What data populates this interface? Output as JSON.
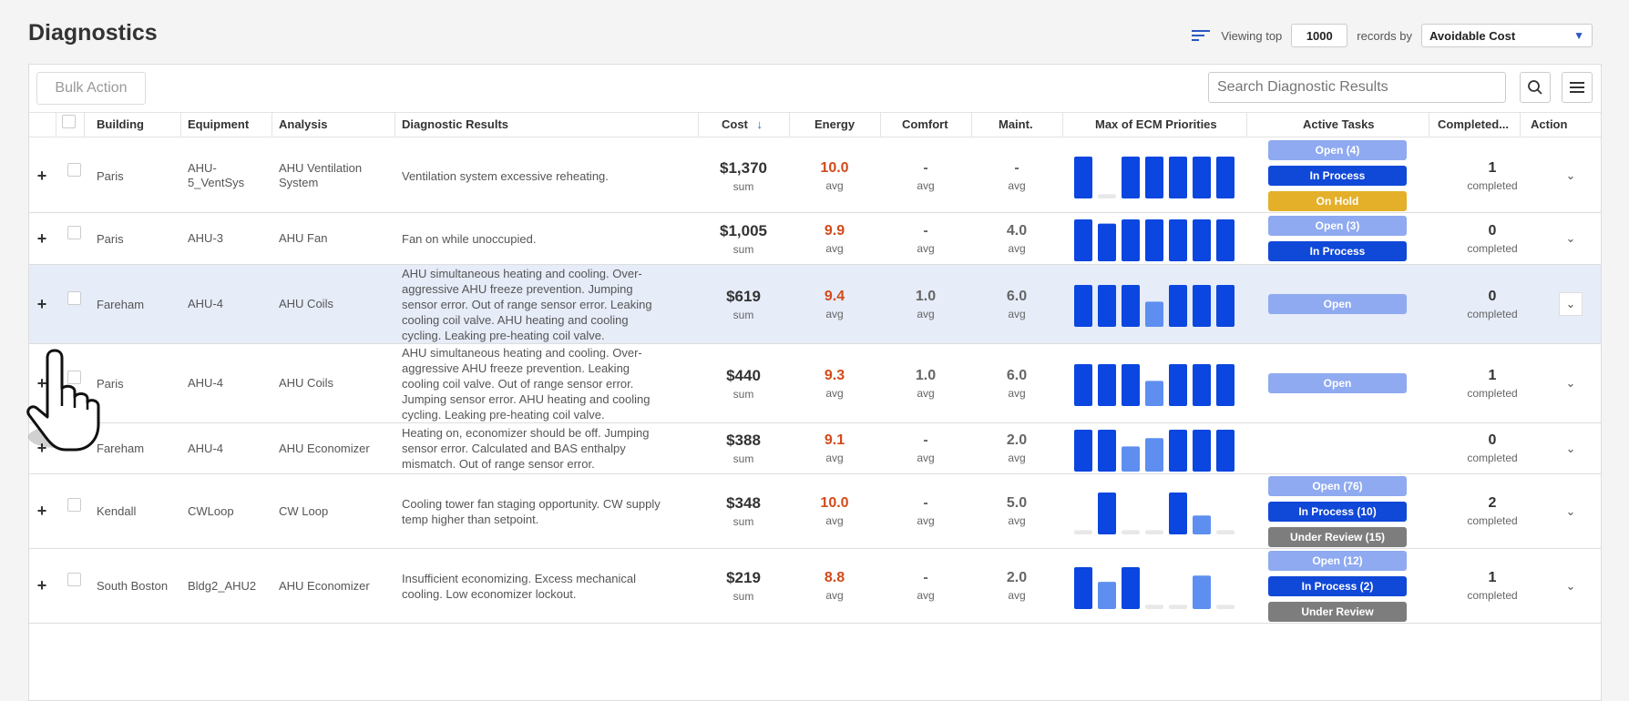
{
  "page_title": "Diagnostics",
  "viewing": {
    "prefix": "Viewing top",
    "count": "1000",
    "suffix": "records by",
    "sort_by": "Avoidable Cost"
  },
  "toolbar": {
    "bulk_action": "Bulk Action",
    "search_placeholder": "Search Diagnostic Results"
  },
  "columns": {
    "building": "Building",
    "equipment": "Equipment",
    "analysis": "Analysis",
    "results": "Diagnostic Results",
    "cost": "Cost",
    "energy": "Energy",
    "comfort": "Comfort",
    "maint": "Maint.",
    "ecm": "Max of ECM Priorities",
    "tasks": "Active Tasks",
    "completed": "Completed...",
    "action": "Action"
  },
  "colors": {
    "accent": "#1048d8",
    "energy": "#d24a1a",
    "open": "#8faaf0",
    "hold": "#e4b02a",
    "review": "#7d7d7d",
    "selected_row": "#e6ecf8"
  },
  "rows": [
    {
      "building": "Paris",
      "equipment": "AHU-5_VentSys",
      "analysis": "AHU Ventilation System",
      "results": "Ventilation system excessive reheating.",
      "cost": "$1,370",
      "cost_sub": "sum",
      "energy": "10.0",
      "comfort": "-",
      "maint": "-",
      "sub": "avg",
      "ecm": [
        10,
        1,
        10,
        10,
        10,
        10,
        10
      ],
      "tasks": [
        {
          "label": "Open (4)",
          "type": "open"
        },
        {
          "label": "In Process",
          "type": "proc"
        },
        {
          "label": "On Hold",
          "type": "hold"
        }
      ],
      "completed": "1",
      "completed_sub": "completed"
    },
    {
      "building": "Paris",
      "equipment": "AHU-3",
      "analysis": "AHU Fan",
      "results": "Fan on while unoccupied.",
      "cost": "$1,005",
      "cost_sub": "sum",
      "energy": "9.9",
      "comfort": "-",
      "maint": "4.0",
      "sub": "avg",
      "ecm": [
        10,
        9,
        10,
        10,
        10,
        10,
        10
      ],
      "tasks": [
        {
          "label": "Open (3)",
          "type": "open"
        },
        {
          "label": "In Process",
          "type": "proc"
        }
      ],
      "completed": "0",
      "completed_sub": "completed"
    },
    {
      "building": "Fareham",
      "equipment": "AHU-4",
      "analysis": "AHU Coils",
      "results": "AHU simultaneous heating and cooling. Over-aggressive AHU freeze prevention. Jumping sensor error. Out of range sensor error. Leaking cooling coil valve. AHU heating and cooling cycling. Leaking pre-heating coil valve.",
      "cost": "$619",
      "cost_sub": "sum",
      "energy": "9.4",
      "comfort": "1.0",
      "maint": "6.0",
      "sub": "avg",
      "ecm": [
        10,
        10,
        10,
        6,
        10,
        10,
        10
      ],
      "tasks": [
        {
          "label": "Open",
          "type": "open"
        }
      ],
      "completed": "0",
      "completed_sub": "completed",
      "selected": true
    },
    {
      "building": "Paris",
      "equipment": "AHU-4",
      "analysis": "AHU Coils",
      "results": "AHU simultaneous heating and cooling. Over-aggressive AHU freeze prevention. Leaking cooling coil valve. Out of range sensor error. Jumping sensor error. AHU heating and cooling cycling. Leaking pre-heating coil valve.",
      "cost": "$440",
      "cost_sub": "sum",
      "energy": "9.3",
      "comfort": "1.0",
      "maint": "6.0",
      "sub": "avg",
      "ecm": [
        10,
        10,
        10,
        6,
        10,
        10,
        10
      ],
      "tasks": [
        {
          "label": "Open",
          "type": "open"
        }
      ],
      "completed": "1",
      "completed_sub": "completed"
    },
    {
      "building": "Fareham",
      "equipment": "AHU-4",
      "analysis": "AHU Economizer",
      "results": "Heating on, economizer should be off. Jumping sensor error. Calculated and BAS enthalpy mismatch. Out of range sensor error.",
      "cost": "$388",
      "cost_sub": "sum",
      "energy": "9.1",
      "comfort": "-",
      "maint": "2.0",
      "sub": "avg",
      "ecm": [
        10,
        10,
        6,
        8,
        10,
        10,
        10
      ],
      "tasks": [],
      "completed": "0",
      "completed_sub": "completed"
    },
    {
      "building": "Kendall",
      "equipment": "CWLoop",
      "analysis": "CW Loop",
      "results": "Cooling tower fan staging opportunity. CW supply temp higher than setpoint.",
      "cost": "$348",
      "cost_sub": "sum",
      "energy": "10.0",
      "comfort": "-",
      "maint": "5.0",
      "sub": "avg",
      "ecm": [
        1,
        10,
        1,
        1,
        10,
        4.5,
        1
      ],
      "tasks": [
        {
          "label": "Open (76)",
          "type": "open"
        },
        {
          "label": "In Process (10)",
          "type": "proc"
        },
        {
          "label": "Under Review (15)",
          "type": "rev"
        }
      ],
      "completed": "2",
      "completed_sub": "completed"
    },
    {
      "building": "South Boston",
      "equipment": "Bldg2_AHU2",
      "analysis": "AHU Economizer",
      "results": "Insufficient economizing. Excess mechanical cooling. Low economizer lockout.",
      "cost": "$219",
      "cost_sub": "sum",
      "energy": "8.8",
      "comfort": "-",
      "maint": "2.0",
      "sub": "avg",
      "ecm": [
        10,
        6.5,
        10,
        1,
        1,
        8,
        1
      ],
      "tasks": [
        {
          "label": "Open (12)",
          "type": "open"
        },
        {
          "label": "In Process (2)",
          "type": "proc"
        },
        {
          "label": "Under Review",
          "type": "rev"
        }
      ],
      "completed": "1",
      "completed_sub": "completed"
    }
  ]
}
